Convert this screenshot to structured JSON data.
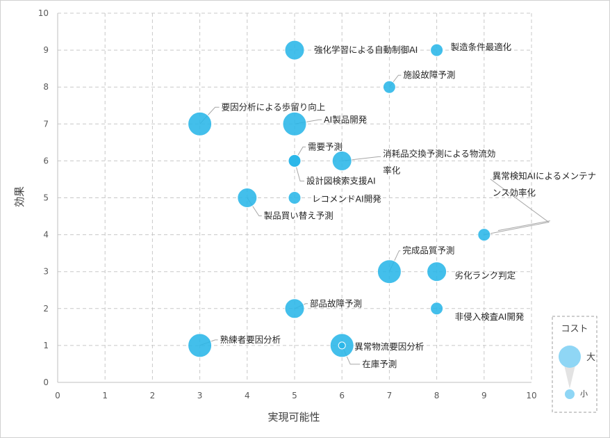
{
  "chart_data": {
    "type": "bubble",
    "xlabel": "実現可能性",
    "ylabel": "効果",
    "xlim": [
      0,
      10
    ],
    "ylim": [
      0,
      10
    ],
    "xticks": [
      0,
      1,
      2,
      3,
      4,
      5,
      6,
      7,
      8,
      9,
      10
    ],
    "yticks": [
      0,
      1,
      2,
      3,
      4,
      5,
      6,
      7,
      8,
      9,
      10
    ],
    "grid": true,
    "bubble_color": "#29b6e8",
    "points": [
      {
        "label": "強化学習による自動制御AI",
        "x": 5,
        "y": 9,
        "size": "medium"
      },
      {
        "label": "製造条件最適化",
        "x": 8,
        "y": 9,
        "size": "small"
      },
      {
        "label": "施設故障予測",
        "x": 7,
        "y": 8,
        "size": "small"
      },
      {
        "label": "要因分析による歩留り向上",
        "x": 3,
        "y": 7,
        "size": "large"
      },
      {
        "label": "AI製品開発",
        "x": 5,
        "y": 7,
        "size": "large"
      },
      {
        "label": "需要予測",
        "x": 5,
        "y": 6,
        "size": "small"
      },
      {
        "label": "設計図検索支援AI",
        "x": 5,
        "y": 6,
        "size": "small"
      },
      {
        "label": "消耗品交換予測による物流効率化",
        "x": 6,
        "y": 6,
        "size": "medium"
      },
      {
        "label": "レコメンドAI開発",
        "x": 5,
        "y": 5,
        "size": "small"
      },
      {
        "label": "製品買い替え予測",
        "x": 4,
        "y": 5,
        "size": "medium"
      },
      {
        "label": "異常検知AIによるメンテナンス効率化",
        "x": 9,
        "y": 4,
        "size": "small"
      },
      {
        "label": "完成品質予測",
        "x": 7,
        "y": 3,
        "size": "large"
      },
      {
        "label": "劣化ランク判定",
        "x": 8,
        "y": 3,
        "size": "medium"
      },
      {
        "label": "部品故障予測",
        "x": 5,
        "y": 2,
        "size": "medium"
      },
      {
        "label": "非侵入検査AI開発",
        "x": 8,
        "y": 2,
        "size": "small"
      },
      {
        "label": "熟練者要因分析",
        "x": 3,
        "y": 1,
        "size": "large"
      },
      {
        "label": "異常物流要因分析",
        "x": 6,
        "y": 1,
        "size": "large"
      },
      {
        "label": "在庫予測",
        "x": 6,
        "y": 1,
        "size": "tiny"
      }
    ],
    "legend": {
      "title": "コスト",
      "large_label": "大",
      "small_label": "小",
      "position": "bottom-right"
    }
  }
}
